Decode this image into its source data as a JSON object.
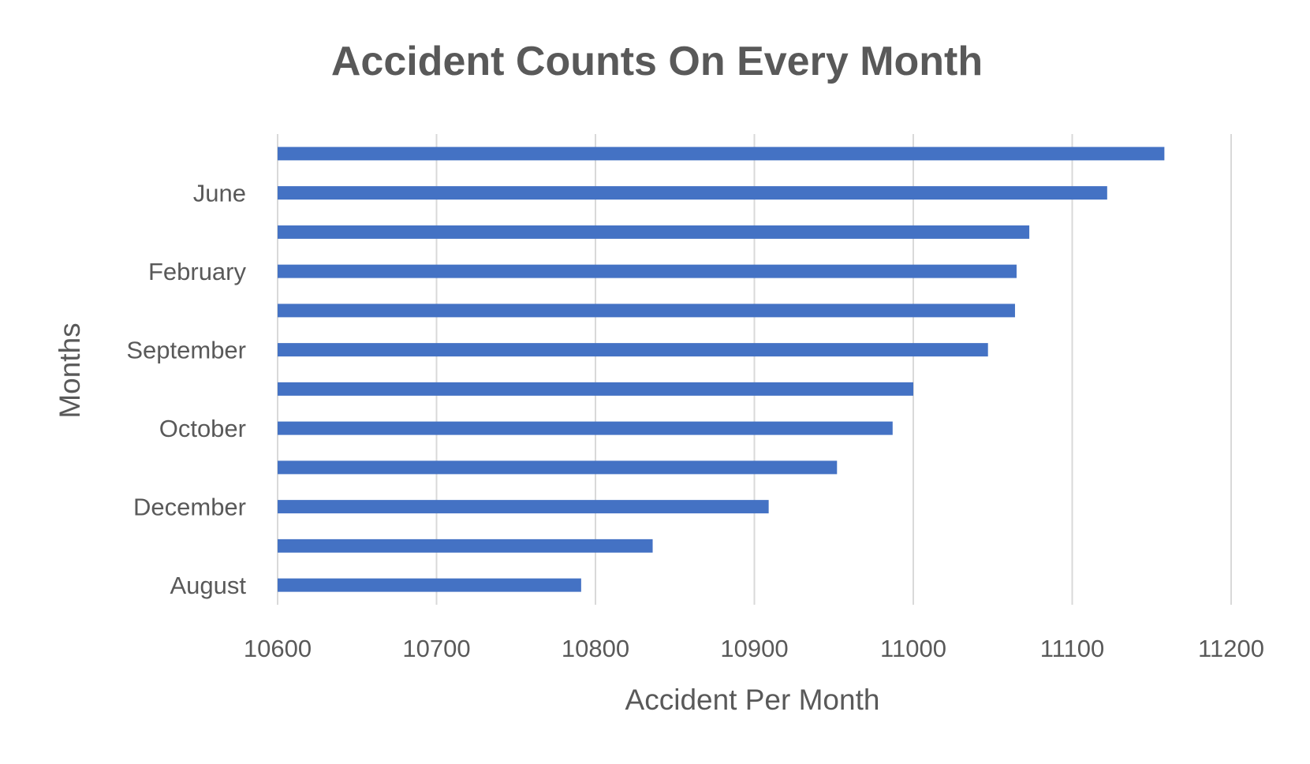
{
  "chart_data": {
    "type": "bar",
    "orientation": "horizontal",
    "title": "Accident Counts On Every Month",
    "xlabel": "Accident Per Month",
    "ylabel": "Months",
    "xlim": [
      10600,
      11200
    ],
    "x_ticks": [
      "10600",
      "10700",
      "10800",
      "10900",
      "11000",
      "11100",
      "11200"
    ],
    "category_labels_shown": [
      "August",
      "",
      "December",
      "",
      "October",
      "",
      "September",
      "",
      "February",
      "",
      "June",
      ""
    ],
    "values": [
      10791,
      10836,
      10909,
      10952,
      10987,
      11000,
      11047,
      11064,
      11065,
      11073,
      11122,
      11158
    ],
    "grid": "vertical major gridlines",
    "legend": "none",
    "bar_color": "#4472C4"
  }
}
